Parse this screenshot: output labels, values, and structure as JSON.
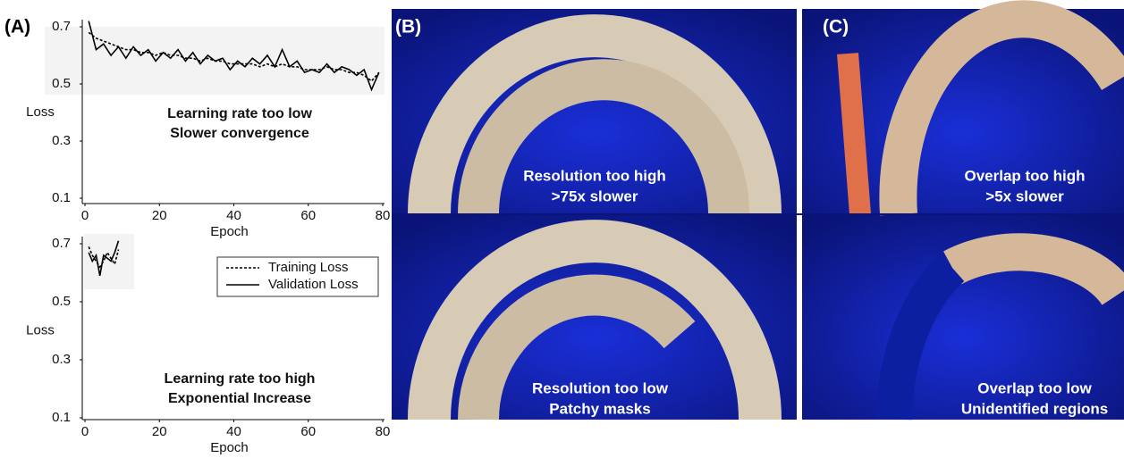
{
  "panel_labels": [
    "(A)",
    "(B)",
    "(C)"
  ],
  "chart_data": [
    {
      "type": "line",
      "xlabel": "Epoch",
      "ylabel": "Loss",
      "annotation": [
        "Learning rate too low",
        "Slower convergence"
      ],
      "xlim": [
        0,
        80
      ],
      "xticks": [
        0,
        20,
        40,
        60,
        80
      ],
      "ylim": [
        0.1,
        0.7
      ],
      "yticks": [
        0.1,
        0.3,
        0.5,
        0.7
      ],
      "legend": false,
      "x": [
        1,
        3,
        5,
        7,
        9,
        11,
        13,
        15,
        17,
        19,
        21,
        23,
        25,
        27,
        29,
        31,
        33,
        35,
        37,
        39,
        41,
        43,
        45,
        47,
        49,
        51,
        53,
        55,
        57,
        59,
        61,
        63,
        65,
        67,
        69,
        71,
        73,
        75,
        77,
        79
      ],
      "series": [
        {
          "color": "#000000",
          "style": "dashed",
          "values": [
            0.68,
            0.66,
            0.65,
            0.64,
            0.63,
            0.62,
            0.62,
            0.61,
            0.61,
            0.6,
            0.61,
            0.6,
            0.6,
            0.59,
            0.59,
            0.58,
            0.59,
            0.58,
            0.58,
            0.57,
            0.57,
            0.57,
            0.57,
            0.56,
            0.57,
            0.56,
            0.57,
            0.56,
            0.56,
            0.55,
            0.55,
            0.55,
            0.56,
            0.55,
            0.55,
            0.54,
            0.54,
            0.53,
            0.51,
            0.54
          ]
        },
        {
          "color": "#000000",
          "style": "solid",
          "values": [
            0.72,
            0.62,
            0.64,
            0.6,
            0.63,
            0.59,
            0.63,
            0.6,
            0.62,
            0.58,
            0.61,
            0.59,
            0.62,
            0.58,
            0.61,
            0.57,
            0.6,
            0.58,
            0.59,
            0.55,
            0.58,
            0.56,
            0.59,
            0.57,
            0.6,
            0.56,
            0.62,
            0.56,
            0.58,
            0.54,
            0.55,
            0.54,
            0.57,
            0.54,
            0.56,
            0.55,
            0.53,
            0.55,
            0.48,
            0.54
          ]
        }
      ]
    },
    {
      "type": "line",
      "xlabel": "Epoch",
      "ylabel": "Loss",
      "annotation": [
        "Learning rate too high",
        "Exponential Increase"
      ],
      "xlim": [
        0,
        80
      ],
      "xticks": [
        0,
        20,
        40,
        60,
        80
      ],
      "ylim": [
        0.1,
        0.7
      ],
      "yticks": [
        0.1,
        0.3,
        0.5,
        0.7
      ],
      "legend": true,
      "x": [
        1,
        2,
        3,
        4,
        5,
        6,
        7,
        8,
        9
      ],
      "series": [
        {
          "name": "Training Loss",
          "color": "#000000",
          "style": "dashed",
          "values": [
            0.69,
            0.66,
            0.64,
            0.62,
            0.64,
            0.67,
            0.65,
            0.63,
            0.68
          ]
        },
        {
          "name": "Validation Loss",
          "color": "#000000",
          "style": "solid",
          "values": [
            0.67,
            0.64,
            0.66,
            0.59,
            0.66,
            0.65,
            0.64,
            0.67,
            0.71
          ]
        }
      ]
    }
  ],
  "photos": [
    [
      "Resolution too high",
      ">75x slower"
    ],
    [
      "Overlap too high",
      ">5x slower"
    ],
    [
      "Resolution too low",
      "Patchy masks"
    ],
    [
      "Overlap too low",
      "Unidentified regions"
    ]
  ]
}
